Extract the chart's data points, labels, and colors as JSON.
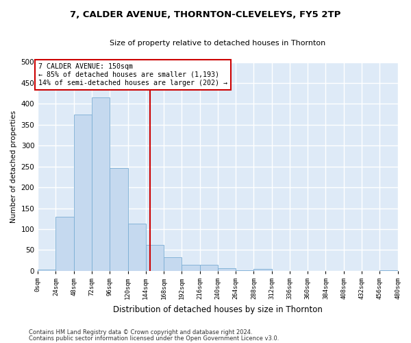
{
  "title": "7, CALDER AVENUE, THORNTON-CLEVELEYS, FY5 2TP",
  "subtitle": "Size of property relative to detached houses in Thornton",
  "xlabel": "Distribution of detached houses by size in Thornton",
  "ylabel": "Number of detached properties",
  "bar_color": "#c5d9ef",
  "bar_edge_color": "#7aadd4",
  "background_color": "#deeaf7",
  "grid_color": "#ffffff",
  "bins": [
    0,
    24,
    48,
    72,
    96,
    120,
    144,
    168,
    192,
    216,
    240,
    264,
    288,
    312,
    336,
    360,
    384,
    408,
    432,
    456,
    480
  ],
  "bin_labels": [
    "0sqm",
    "24sqm",
    "48sqm",
    "72sqm",
    "96sqm",
    "120sqm",
    "144sqm",
    "168sqm",
    "192sqm",
    "216sqm",
    "240sqm",
    "264sqm",
    "288sqm",
    "312sqm",
    "336sqm",
    "360sqm",
    "384sqm",
    "408sqm",
    "432sqm",
    "456sqm",
    "480sqm"
  ],
  "values": [
    3,
    130,
    375,
    415,
    247,
    113,
    63,
    33,
    15,
    15,
    6,
    1,
    5,
    0,
    0,
    0,
    0,
    0,
    0,
    1
  ],
  "property_size": 150,
  "annotation_line1": "7 CALDER AVENUE: 150sqm",
  "annotation_line2": "← 85% of detached houses are smaller (1,193)",
  "annotation_line3": "14% of semi-detached houses are larger (202) →",
  "annotation_box_color": "#ffffff",
  "annotation_box_edge_color": "#cc0000",
  "vline_color": "#cc0000",
  "ylim": [
    0,
    500
  ],
  "yticks": [
    0,
    50,
    100,
    150,
    200,
    250,
    300,
    350,
    400,
    450,
    500
  ],
  "footnote1": "Contains HM Land Registry data © Crown copyright and database right 2024.",
  "footnote2": "Contains public sector information licensed under the Open Government Licence v3.0."
}
